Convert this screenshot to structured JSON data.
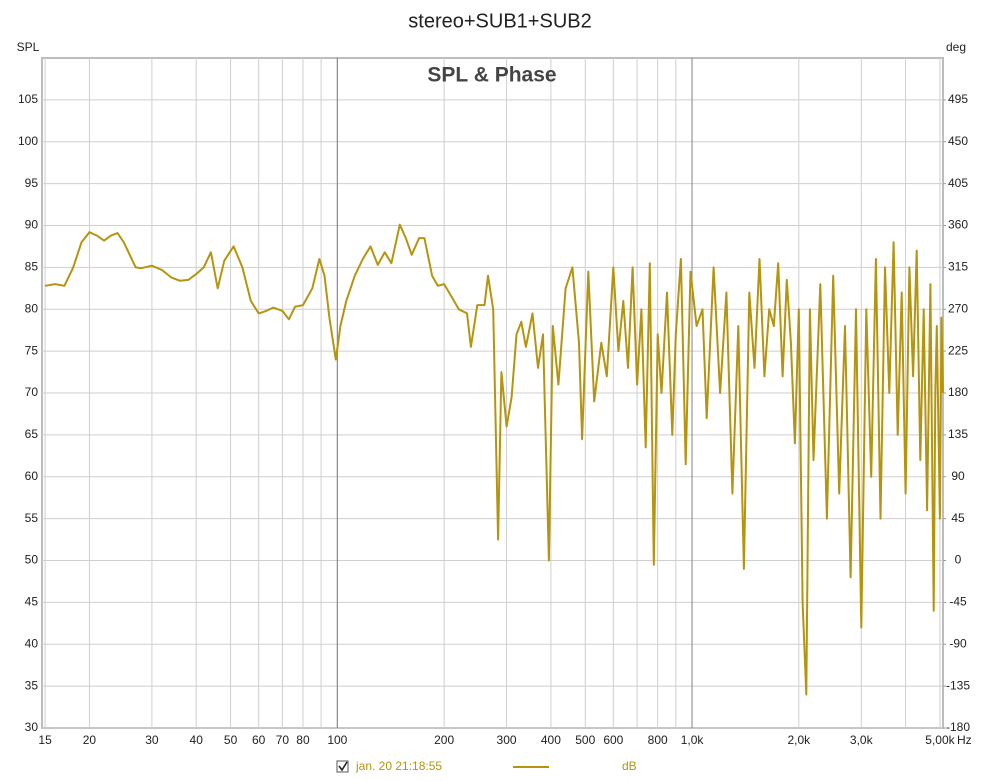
{
  "chart_data": {
    "type": "line",
    "title": "stereo+SUB1+SUB2",
    "subtitle": "SPL & Phase",
    "y_label": "SPL",
    "y2_label": "deg",
    "x_unit": "Hz",
    "log_x": true,
    "grid": true,
    "xlim": [
      14.7,
      5100
    ],
    "ylim": [
      30,
      110
    ],
    "y2lim": [
      -180,
      540
    ],
    "xticks": [
      15,
      20,
      30,
      40,
      50,
      60,
      70,
      80,
      100,
      200,
      300,
      400,
      500,
      600,
      800,
      {
        "value": 1000,
        "label": "1,0k"
      },
      {
        "value": 2000,
        "label": "2,0k"
      },
      {
        "value": 3000,
        "label": "3,0k"
      },
      {
        "value": 5000,
        "label": "5,00k"
      }
    ],
    "x_minor_gridlines": [
      90,
      700,
      900,
      4000
    ],
    "x_major_gridlines": [
      100,
      1000
    ],
    "yticks": [
      30,
      35,
      40,
      45,
      50,
      55,
      60,
      65,
      70,
      75,
      80,
      85,
      90,
      95,
      100,
      105
    ],
    "y2ticks": [
      -180,
      -135,
      -90,
      -45,
      0,
      45,
      90,
      135,
      180,
      225,
      270,
      315,
      360,
      405,
      450,
      495
    ],
    "legend_checked": true,
    "legend_date": "jan. 20 21:18:55",
    "x": [
      15,
      16,
      17,
      18,
      19,
      20,
      21,
      22,
      23,
      24,
      25,
      27,
      28,
      30,
      32,
      34,
      36,
      38,
      40,
      42,
      44,
      46,
      48,
      51,
      54,
      57,
      60,
      63,
      66,
      70,
      73,
      76,
      80,
      85,
      89,
      92,
      95,
      99,
      102,
      106,
      112,
      118,
      124,
      130,
      136,
      142,
      150,
      156,
      162,
      170,
      176,
      185,
      192,
      200,
      210,
      220,
      232,
      238,
      248,
      260,
      266,
      275,
      284,
      290,
      300,
      310,
      320,
      330,
      340,
      355,
      368,
      380,
      395,
      405,
      420,
      440,
      460,
      480,
      490,
      510,
      530,
      555,
      575,
      600,
      620,
      640,
      660,
      680,
      700,
      720,
      740,
      760,
      780,
      800,
      820,
      850,
      880,
      900,
      930,
      960,
      990,
      1030,
      1070,
      1100,
      1150,
      1200,
      1250,
      1300,
      1350,
      1400,
      1450,
      1500,
      1550,
      1600,
      1650,
      1700,
      1750,
      1800,
      1850,
      1900,
      1950,
      2000,
      2050,
      2100,
      2150,
      2200,
      2300,
      2400,
      2500,
      2600,
      2700,
      2800,
      2900,
      3000,
      3100,
      3200,
      3300,
      3400,
      3500,
      3600,
      3700,
      3800,
      3900,
      4000,
      4100,
      4200,
      4300,
      4400,
      4500,
      4600,
      4700,
      4800,
      4850,
      4900,
      5000,
      5050,
      5100
    ],
    "series": [
      {
        "name": "dB",
        "color": "#b59410",
        "values": [
          82.8,
          83,
          82.8,
          85,
          88,
          89.2,
          88.8,
          88.2,
          88.8,
          89.1,
          88,
          85,
          84.9,
          85.2,
          84.7,
          83.8,
          83.4,
          83.5,
          84.2,
          85,
          86.8,
          82.5,
          85.8,
          87.5,
          85,
          81,
          79.5,
          79.8,
          80.2,
          79.8,
          78.8,
          80.3,
          80.5,
          82.5,
          86,
          84,
          79,
          74,
          78,
          81,
          84,
          86,
          87.5,
          85.3,
          86.8,
          85.5,
          90.1,
          88.5,
          86.5,
          88.5,
          88.5,
          84,
          82.8,
          83,
          81.5,
          80,
          79.5,
          75.5,
          80.5,
          80.5,
          84,
          80,
          52.5,
          72.5,
          66,
          69.5,
          77,
          78.5,
          75.5,
          79.5,
          73,
          77,
          50,
          78,
          71,
          82.5,
          85,
          76,
          64.5,
          84.5,
          69,
          76,
          72,
          85,
          75,
          81,
          73,
          85,
          71,
          80,
          63.5,
          85.5,
          49.5,
          77,
          70,
          82,
          65,
          77,
          86,
          61.5,
          84.5,
          78,
          80,
          67,
          85,
          70,
          82,
          58,
          78,
          49,
          82,
          73,
          86,
          72,
          80,
          78,
          85.5,
          72,
          83.5,
          76,
          64,
          80,
          45,
          34,
          80,
          62,
          83,
          55,
          84,
          58,
          78,
          48,
          80,
          42,
          80,
          60,
          86,
          55,
          85,
          70,
          88,
          65,
          82,
          58,
          85,
          72,
          87,
          62,
          80,
          56,
          83,
          44,
          70,
          78,
          55,
          79,
          70
        ]
      }
    ]
  }
}
